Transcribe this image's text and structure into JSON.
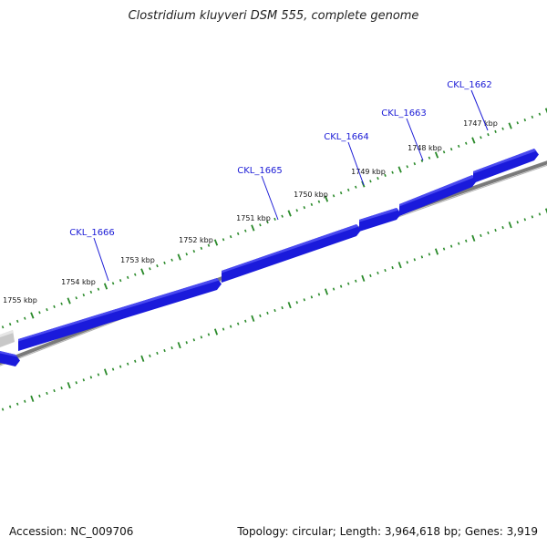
{
  "title": "Clostridium kluyveri DSM 555, complete genome",
  "footer": {
    "accession": "Accession: NC_009706",
    "summary": "Topology: circular; Length: 3,964,618 bp; Genes: 3,919"
  },
  "colors": {
    "gene": "#1a1adb",
    "gene_top": "#4a4af0",
    "gene_faded": "#c8c8c8",
    "backbone": "#808080",
    "tick": "#2a8a2a",
    "label": "#1a1ad6"
  },
  "kbp_ticks": [
    "1747 kbp",
    "1748 kbp",
    "1749 kbp",
    "1750 kbp",
    "1751 kbp",
    "1752 kbp",
    "1753 kbp",
    "1754 kbp",
    "1755 kbp"
  ],
  "genes": [
    {
      "label": "CKL_1662"
    },
    {
      "label": "CKL_1663"
    },
    {
      "label": "CKL_1664"
    },
    {
      "label": "CKL_1665"
    },
    {
      "label": "CKL_1666"
    }
  ]
}
